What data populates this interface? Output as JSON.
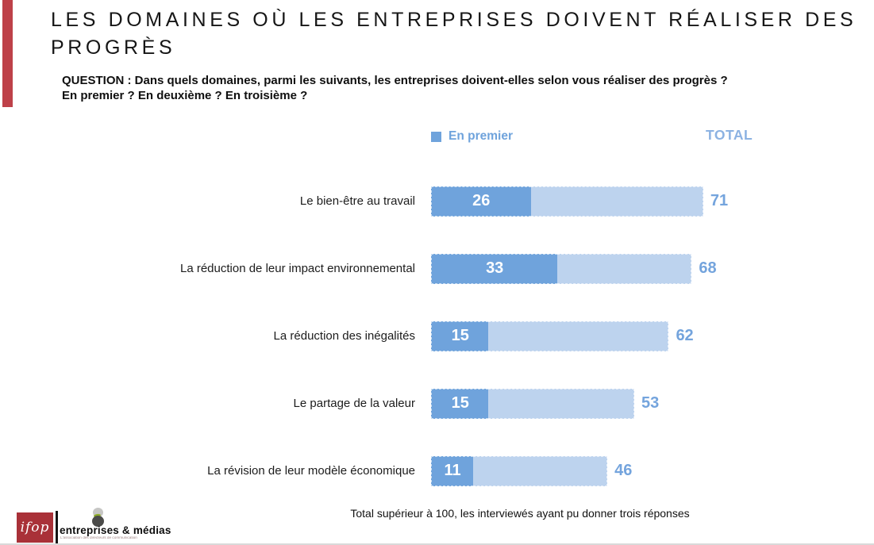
{
  "colors": {
    "accent_red": "#BE4149",
    "bar_dark": "#6FA3DC",
    "bar_light": "#BDD3EE",
    "value_blue": "#74A4DD",
    "total_header_blue": "#8CB2E2",
    "legend_blue": "#6FA3DC",
    "ifop_red": "#A93138"
  },
  "header": {
    "title_line1": "LES DOMAINES OÙ LES ENTREPRISES DOIVENT RÉALISER DES",
    "title_line2": "PROGRÈS"
  },
  "question": {
    "line1": "QUESTION : Dans quels domaines, parmi les suivants, les entreprises doivent-elles selon vous réaliser des progrès ?",
    "line2": "En premier ? En deuxième ? En troisième ?"
  },
  "legend": {
    "primary_label": "En premier",
    "total_label": "TOTAL"
  },
  "chart_data": {
    "type": "bar",
    "orientation": "horizontal",
    "title": "Les domaines où les entreprises doivent réaliser des progrès",
    "categories": [
      "Le bien-être au travail",
      "La réduction de leur impact environnemental",
      "La réduction des inégalités",
      "Le partage de la valeur",
      "La révision de leur modèle économique"
    ],
    "series": [
      {
        "name": "En premier",
        "values": [
          26,
          33,
          15,
          15,
          11
        ]
      },
      {
        "name": "TOTAL",
        "values": [
          71,
          68,
          62,
          53,
          46
        ]
      }
    ],
    "xlim": [
      0,
      100
    ],
    "legend_position": "top",
    "grid": false,
    "value_labels": "first-choice inside bar in white, total at right of bar in blue"
  },
  "footer": {
    "note": "Total supérieur à 100, les interviewés ayant pu donner trois réponses"
  },
  "logos": {
    "ifop_text": "ifop",
    "em_name": "entreprises & médias",
    "em_tagline": "L'association des directeurs de communication"
  }
}
